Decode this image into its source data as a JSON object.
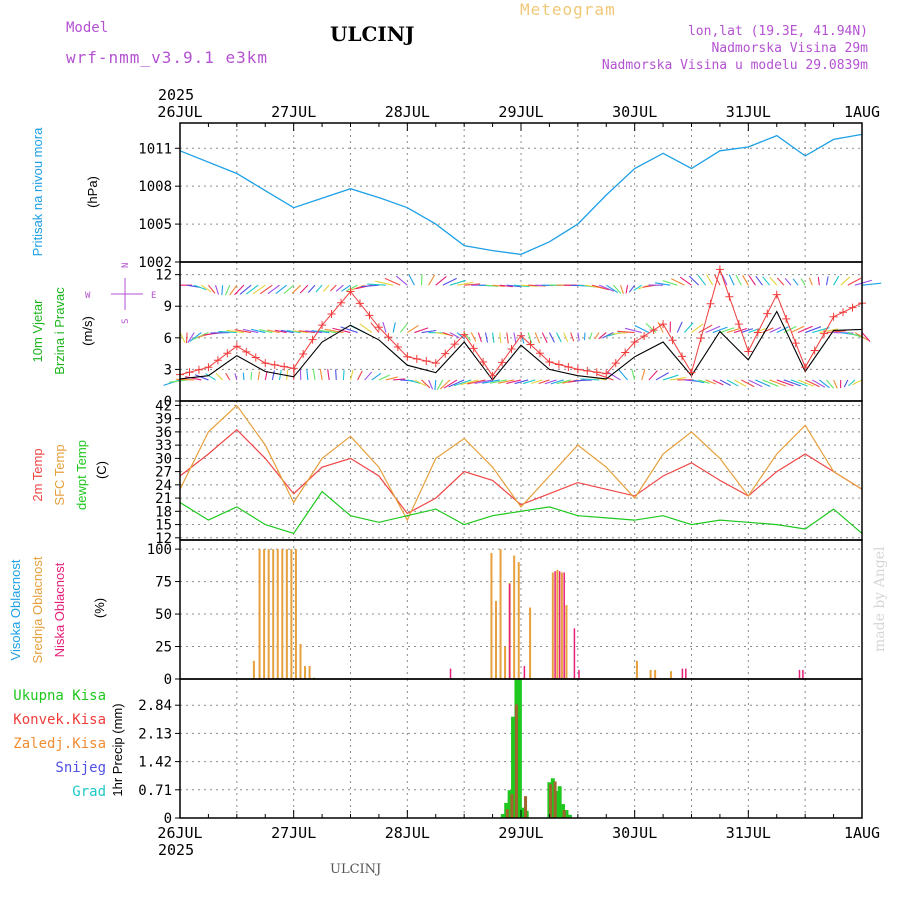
{
  "header": {
    "meteogram": "Meteogram",
    "title": "ULCINJ",
    "model_label": "Model",
    "model_name": "wrf-nmm_v3.9.1 e3km",
    "lonlat": "lon,lat (19.3E, 41.94N)",
    "altitude": "Nadmorska Visina 29m",
    "altitude_model": "Nadmorska Visina u modelu 29.0839m"
  },
  "footer": {
    "station": "ULCINJ",
    "credit": "made by Angel"
  },
  "colors": {
    "pressure": "#1ea0e6",
    "wind_label": "#1eb41e",
    "wind_speed": "#000000",
    "wind_gust": "#f03c3c",
    "temp2m": "#f04646",
    "sfc": "#e6a03c",
    "dewpoint": "#1ec81e",
    "cloud_high": "#1ea0e6",
    "cloud_mid": "#e6a03c",
    "cloud_low": "#e61e78",
    "precip_total": "#1ec81e",
    "precip_conv": "#f03c3c",
    "precip_strat": "#f08c32",
    "snow": "#5050e6",
    "graupel": "#1ec8c8",
    "grid": "#8c8c8c"
  },
  "chart_data": [
    {
      "type": "line",
      "title": "Pritisak na nivou mora",
      "ylabel": "(hPa)",
      "x_ticks": [
        "26JUL",
        "27JUL",
        "28JUL",
        "29JUL",
        "30JUL",
        "31JUL",
        "1AUG"
      ],
      "year": "2025",
      "y_ticks": [
        "1002",
        "1005",
        "1008",
        "1011"
      ],
      "ylim": [
        1002,
        1013
      ],
      "series": [
        {
          "key": "pressure",
          "x": [
            0,
            0.5,
            1,
            1.5,
            1.75,
            2,
            2.25,
            2.5,
            2.75,
            3,
            3.25,
            3.5,
            3.75,
            4,
            4.25,
            4.5,
            4.75,
            5,
            5.25,
            5.5,
            5.75,
            6
          ],
          "values": [
            1010.8,
            1009.0,
            1006.3,
            1007.8,
            1007.1,
            1006.3,
            1005.0,
            1003.3,
            1002.9,
            1002.6,
            1003.6,
            1005.0,
            1007.3,
            1009.4,
            1010.6,
            1009.4,
            1010.8,
            1011.1,
            1012.0,
            1010.4,
            1011.7,
            1012.1
          ]
        }
      ]
    },
    {
      "type": "line",
      "title": "10m Vjetar Brzina i Pravac",
      "ylabel": "(m/s)",
      "y_ticks": [
        "0",
        "3",
        "6",
        "9",
        "12"
      ],
      "ylim": [
        0,
        13.2
      ],
      "compass": {
        "n": "N",
        "s": "S",
        "w": "W",
        "e": "E"
      },
      "series": [
        {
          "name": "speed",
          "key": "wind_speed",
          "x": [
            0,
            0.25,
            0.5,
            0.75,
            1,
            1.25,
            1.5,
            1.75,
            2,
            2.25,
            2.5,
            2.75,
            3,
            3.25,
            3.5,
            3.75,
            4,
            4.25,
            4.5,
            4.75,
            5,
            5.25,
            5.5,
            5.75,
            6
          ],
          "values": [
            2.1,
            2.4,
            4.3,
            2.8,
            2.3,
            5.6,
            7.2,
            5.8,
            3.4,
            2.7,
            5.6,
            2.0,
            5.3,
            3.0,
            2.4,
            2.1,
            4.2,
            5.6,
            2.4,
            6.6,
            3.9,
            8.5,
            2.8,
            6.7,
            6.8
          ]
        },
        {
          "name": "gust",
          "key": "wind_gust",
          "x": [
            0,
            0.25,
            0.5,
            0.75,
            1,
            1.25,
            1.5,
            1.75,
            2,
            2.25,
            2.5,
            2.75,
            3,
            3.25,
            3.5,
            3.75,
            4,
            4.25,
            4.5,
            4.75,
            5,
            5.25,
            5.5,
            5.75,
            6
          ],
          "values": [
            2.5,
            3.2,
            5.2,
            3.6,
            3.1,
            7.2,
            10.4,
            7.0,
            4.2,
            3.6,
            6.3,
            2.4,
            6.2,
            3.7,
            3.0,
            2.6,
            5.6,
            7.3,
            2.7,
            12.5,
            4.7,
            10.1,
            3.2,
            8.0,
            9.3
          ]
        }
      ],
      "arrow_rows": [
        11,
        6.5,
        2
      ]
    },
    {
      "type": "line",
      "title": "2m Temp / SFC Temp / dewpt Temp",
      "ylabel": "(C)",
      "y_ticks": [
        "12",
        "15",
        "18",
        "21",
        "24",
        "27",
        "30",
        "33",
        "36",
        "39",
        "42"
      ],
      "ylim": [
        11.5,
        43
      ],
      "series": [
        {
          "name": "2m Temp",
          "key": "temp2m",
          "x": [
            0,
            0.25,
            0.5,
            0.75,
            1,
            1.25,
            1.5,
            1.75,
            2,
            2.25,
            2.5,
            2.75,
            3,
            3.25,
            3.5,
            3.75,
            4,
            4.25,
            4.5,
            4.75,
            5,
            5.25,
            5.5,
            5.75,
            6
          ],
          "values": [
            26,
            31,
            36.5,
            30,
            22,
            28,
            30,
            26,
            17.5,
            21,
            27,
            25,
            19.5,
            22,
            24.5,
            23,
            21.5,
            26,
            29,
            25,
            21.5,
            27,
            31,
            27,
            23
          ]
        },
        {
          "name": "SFC Temp",
          "key": "sfc",
          "x": [
            0,
            0.25,
            0.5,
            0.75,
            1,
            1.25,
            1.5,
            1.75,
            2,
            2.25,
            2.5,
            2.75,
            3,
            3.25,
            3.5,
            3.75,
            4,
            4.25,
            4.5,
            4.75,
            5,
            5.25,
            5.5,
            5.75,
            6
          ],
          "values": [
            23,
            36,
            42,
            33,
            20,
            30,
            35,
            28,
            16,
            30,
            34.5,
            28,
            19,
            26,
            33,
            28,
            21,
            31,
            36,
            30,
            21.5,
            31,
            37.5,
            27,
            23
          ]
        },
        {
          "name": "dewpt Temp",
          "key": "dewpoint",
          "x": [
            0,
            0.25,
            0.5,
            0.75,
            1,
            1.25,
            1.5,
            1.75,
            2,
            2.25,
            2.5,
            2.75,
            3,
            3.25,
            3.5,
            3.75,
            4,
            4.25,
            4.5,
            4.75,
            5,
            5.25,
            5.5,
            5.75,
            6
          ],
          "values": [
            20,
            16,
            19,
            15,
            13,
            22.5,
            17,
            15.5,
            17,
            18.5,
            15,
            17,
            18,
            19,
            17,
            16.5,
            16,
            17,
            15,
            16,
            15.5,
            15,
            14,
            18.5,
            13
          ]
        }
      ]
    },
    {
      "type": "bar",
      "title": "Visoka / Srednja / Niska Oblacnost",
      "ylabel": "(%)",
      "y_ticks": [
        "0",
        "25",
        "50",
        "75",
        "100"
      ],
      "ylim": [
        0,
        107
      ],
      "mid_x": [
        0.65,
        0.7,
        0.74,
        0.78,
        0.82,
        0.86,
        0.9,
        0.94,
        0.98,
        1.02,
        1.06,
        1.1,
        1.14,
        1.18,
        2.74,
        2.78,
        2.82,
        2.86,
        2.9,
        2.94,
        2.98,
        3.02,
        3.08,
        3.28,
        3.32,
        3.36,
        3.4,
        4.02,
        4.14,
        4.18,
        4.32
      ],
      "mid_values": [
        14,
        100,
        100,
        100,
        100,
        100,
        100,
        100,
        100,
        100,
        27,
        10,
        10,
        1,
        97,
        60,
        100,
        25,
        74,
        95,
        90,
        1,
        55,
        82,
        84,
        82,
        57,
        14,
        7,
        7,
        6
      ],
      "low_x": [
        2.38,
        2.9,
        3.03,
        3.3,
        3.34,
        3.38,
        3.47,
        3.51,
        4.42,
        4.45,
        5.45,
        5.48
      ],
      "low_values": [
        8,
        73,
        10,
        83,
        83,
        82,
        39,
        7,
        8,
        8,
        7,
        7
      ]
    },
    {
      "type": "bar",
      "title": "1hr Precip",
      "ylabel": "(mm)",
      "y_ticks": [
        "0",
        "0.71",
        "1.42",
        "2.13",
        "2.84"
      ],
      "ylim": [
        0,
        3.5
      ],
      "legend": [
        "Ukupna Kisa",
        "Konvek.Kisa",
        "Zaledj.Kisa",
        "Snijeg",
        "Grad"
      ],
      "total_x": [
        2.84,
        2.87,
        2.9,
        2.93,
        2.96,
        2.99,
        3.02,
        3.05,
        3.25,
        3.28,
        3.31,
        3.34,
        3.37,
        3.4,
        3.43
      ],
      "total_values": [
        0.1,
        0.38,
        0.7,
        2.55,
        3.5,
        3.5,
        0.26,
        0.18,
        0.9,
        1.0,
        0.68,
        0.8,
        0.35,
        0.2,
        0.08
      ],
      "strat_x": [
        2.88,
        2.92,
        2.96,
        3.04,
        3.26,
        3.3,
        3.38
      ],
      "strat_values": [
        0.22,
        0.6,
        2.86,
        0.55,
        0.85,
        0.92,
        0.2
      ]
    }
  ]
}
